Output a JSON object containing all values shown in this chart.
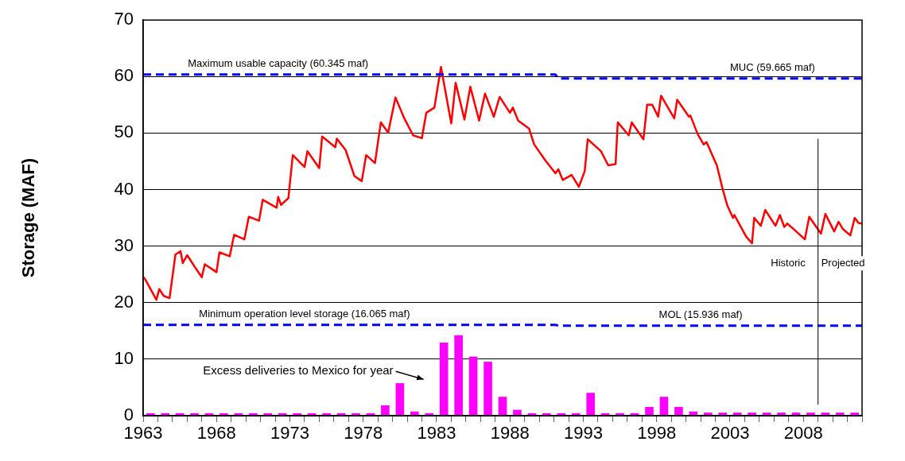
{
  "chart_data": {
    "type": "line",
    "ylabel": "Storage (MAF)",
    "xlim": [
      1963,
      2012
    ],
    "xticks": [
      1963,
      {
        "value": 1964,
        "label": null
      },
      {
        "value": 1965,
        "label": null
      },
      {
        "value": 1966,
        "label": null
      },
      {
        "value": 1967,
        "label": null
      },
      1968,
      {
        "value": 1969,
        "label": null
      },
      {
        "value": 1970,
        "label": null
      },
      {
        "value": 1971,
        "label": null
      },
      {
        "value": 1972,
        "label": null
      },
      1973,
      {
        "value": 1974,
        "label": null
      },
      {
        "value": 1975,
        "label": null
      },
      {
        "value": 1976,
        "label": null
      },
      {
        "value": 1977,
        "label": null
      },
      1978,
      {
        "value": 1979,
        "label": null
      },
      {
        "value": 1980,
        "label": null
      },
      {
        "value": 1981,
        "label": null
      },
      {
        "value": 1982,
        "label": null
      },
      1983,
      {
        "value": 1984,
        "label": null
      },
      {
        "value": 1985,
        "label": null
      },
      {
        "value": 1986,
        "label": null
      },
      {
        "value": 1987,
        "label": null
      },
      1988,
      {
        "value": 1989,
        "label": null
      },
      {
        "value": 1990,
        "label": null
      },
      {
        "value": 1991,
        "label": null
      },
      {
        "value": 1992,
        "label": null
      },
      1993,
      {
        "value": 1994,
        "label": null
      },
      {
        "value": 1995,
        "label": null
      },
      {
        "value": 1996,
        "label": null
      },
      {
        "value": 1997,
        "label": null
      },
      1998,
      {
        "value": 1999,
        "label": null
      },
      {
        "value": 2000,
        "label": null
      },
      {
        "value": 2001,
        "label": null
      },
      {
        "value": 2002,
        "label": null
      },
      2003,
      {
        "value": 2004,
        "label": null
      },
      {
        "value": 2005,
        "label": null
      },
      {
        "value": 2006,
        "label": null
      },
      {
        "value": 2007,
        "label": null
      },
      2008,
      {
        "value": 2009,
        "label": null
      },
      {
        "value": 2010,
        "label": null
      },
      {
        "value": 2011,
        "label": null
      },
      {
        "value": 2012,
        "label": null
      }
    ],
    "ylim": [
      0,
      70
    ],
    "yticks": [
      0,
      10,
      20,
      30,
      40,
      50,
      60,
      70
    ],
    "grid": "y",
    "legend": false,
    "marker": "none",
    "series": [
      {
        "type": "bar",
        "color": "#ff00ff",
        "x": [
          1963.5,
          1964.5,
          1965.5,
          1966.5,
          1967.5,
          1968.5,
          1969.5,
          1970.5,
          1971.5,
          1972.5,
          1973.5,
          1974.5,
          1975.5,
          1976.5,
          1977.5,
          1978.5,
          1979.5,
          1980.5,
          1981.5,
          1982.5,
          1983.5,
          1984.5,
          1985.5,
          1986.5,
          1987.5,
          1988.5,
          1989.5,
          1990.5,
          1991.5,
          1992.5,
          1993.5,
          1994.5,
          1995.5,
          1996.5,
          1997.5,
          1998.5,
          1999.5,
          2000.5,
          2001.5,
          2002.5,
          2003.5,
          2004.5,
          2005.5,
          2006.5,
          2007.5,
          2008.5,
          2009.5,
          2010.5,
          2011.5
        ],
        "values": [
          0.4,
          0.4,
          0.4,
          0.4,
          0.4,
          0.4,
          0.4,
          0.4,
          0.4,
          0.4,
          0.4,
          0.4,
          0.4,
          0.4,
          0.4,
          0.4,
          1.8,
          5.7,
          0.7,
          0.4,
          12.9,
          14.2,
          10.4,
          9.5,
          3.3,
          1.0,
          0.4,
          0.4,
          0.4,
          0.4,
          4.0,
          0.4,
          0.4,
          0.4,
          1.5,
          3.3,
          1.5,
          0.7,
          0.5,
          0.5,
          0.5,
          0.5,
          0.5,
          0.5,
          0.5,
          0.5,
          0.5,
          0.5,
          0.5
        ]
      },
      {
        "color": "#0000ff",
        "line_style": "dashed",
        "x": [
          1963,
          1991.1,
          1991.3,
          2012
        ],
        "values": [
          60.345,
          60.345,
          59.665,
          59.665
        ]
      },
      {
        "color": "#0000ff",
        "line_style": "dashed",
        "x": [
          1963,
          1991.1,
          1991.3,
          2012
        ],
        "values": [
          16.065,
          16.065,
          15.936,
          15.936
        ]
      },
      {
        "color": "#ff0000",
        "line_style": "solid",
        "x": [
          1963.0,
          1963.1,
          1963.4,
          1963.9,
          1964.1,
          1964.4,
          1964.8,
          1965.2,
          1965.55,
          1965.7,
          1966.0,
          1966.5,
          1967.0,
          1967.2,
          1968.0,
          1968.2,
          1968.9,
          1969.2,
          1969.9,
          1970.2,
          1970.9,
          1971.15,
          1972.1,
          1972.2,
          1972.4,
          1972.9,
          1973.2,
          1974.0,
          1974.2,
          1975.0,
          1975.2,
          1976.1,
          1976.2,
          1976.8,
          1977.4,
          1977.9,
          1978.2,
          1978.8,
          1979.2,
          1979.7,
          1980.2,
          1980.8,
          1981.4,
          1982.0,
          1982.3,
          1982.85,
          1983.3,
          1984.0,
          1984.3,
          1984.9,
          1985.3,
          1985.9,
          1986.3,
          1986.9,
          1987.3,
          1988.0,
          1988.2,
          1988.56,
          1989.3,
          1989.65,
          1990.4,
          1991.1,
          1991.3,
          1991.6,
          1992.2,
          1992.7,
          1993.1,
          1993.3,
          1994.2,
          1994.7,
          1995.2,
          1995.35,
          1996.1,
          1996.3,
          1997.1,
          1997.35,
          1997.7,
          1998.1,
          1998.3,
          1999.2,
          1999.4,
          2000.2,
          2000.3,
          2000.8,
          2001.2,
          2001.4,
          2002.1,
          2002.5,
          2002.8,
          2003.2,
          2003.3,
          2004.1,
          2004.5,
          2004.65,
          2005.1,
          2005.4,
          2006.1,
          2006.4,
          2006.7,
          2006.9,
          2007.3,
          2008.1,
          2008.4,
          2009.2,
          2009.5,
          2010.1,
          2010.4,
          2010.7,
          2011.2,
          2011.5,
          2011.75,
          2012.0
        ],
        "values": [
          24.5,
          24.3,
          22.9,
          20.5,
          22.4,
          21.2,
          20.8,
          28.5,
          29.1,
          27.0,
          28.4,
          26.4,
          24.5,
          26.8,
          25.4,
          28.9,
          28.2,
          32.0,
          31.2,
          35.2,
          34.5,
          38.2,
          36.8,
          38.7,
          37.3,
          38.5,
          46.1,
          44.0,
          46.8,
          43.8,
          49.4,
          47.5,
          49.0,
          47.0,
          42.4,
          41.5,
          46.1,
          44.7,
          51.9,
          50.1,
          56.3,
          52.6,
          49.6,
          49.1,
          53.6,
          54.5,
          61.7,
          51.7,
          58.9,
          52.4,
          58.2,
          52.2,
          57.0,
          52.9,
          56.4,
          53.6,
          54.5,
          52.2,
          50.8,
          48.0,
          45.2,
          42.9,
          43.6,
          41.7,
          42.6,
          40.5,
          43.3,
          48.9,
          46.8,
          44.3,
          44.5,
          51.9,
          49.6,
          51.9,
          48.9,
          55.0,
          55.0,
          52.9,
          56.6,
          52.6,
          55.9,
          52.9,
          53.1,
          49.8,
          48.0,
          48.4,
          44.3,
          40.1,
          37.3,
          35.0,
          35.5,
          31.7,
          30.5,
          35.0,
          33.6,
          36.4,
          33.6,
          35.5,
          33.4,
          34.0,
          33.1,
          31.2,
          35.2,
          32.2,
          35.7,
          32.6,
          34.3,
          33.0,
          31.9,
          35.0,
          34.1,
          34.0
        ]
      }
    ],
    "ref_lines": [
      {
        "axis": "x",
        "value": 2009,
        "color": "#000000"
      }
    ],
    "annotations": [
      {
        "text": "Maximum usable capacity (60.345 maf)",
        "x": 1972.2,
        "y": 60.345
      },
      {
        "text": "MUC (59.665 maf)",
        "x": 2005.9,
        "y": 59.665
      },
      {
        "text": "Minimum operation level storage (16.065 maf)",
        "x": 1974.0,
        "y": 16.065
      },
      {
        "text": "MOL (15.936 maf)",
        "x": 2001.0,
        "y": 15.936
      },
      "Excess deliveries to Mexico for year",
      "Historic",
      "Projected"
    ]
  }
}
